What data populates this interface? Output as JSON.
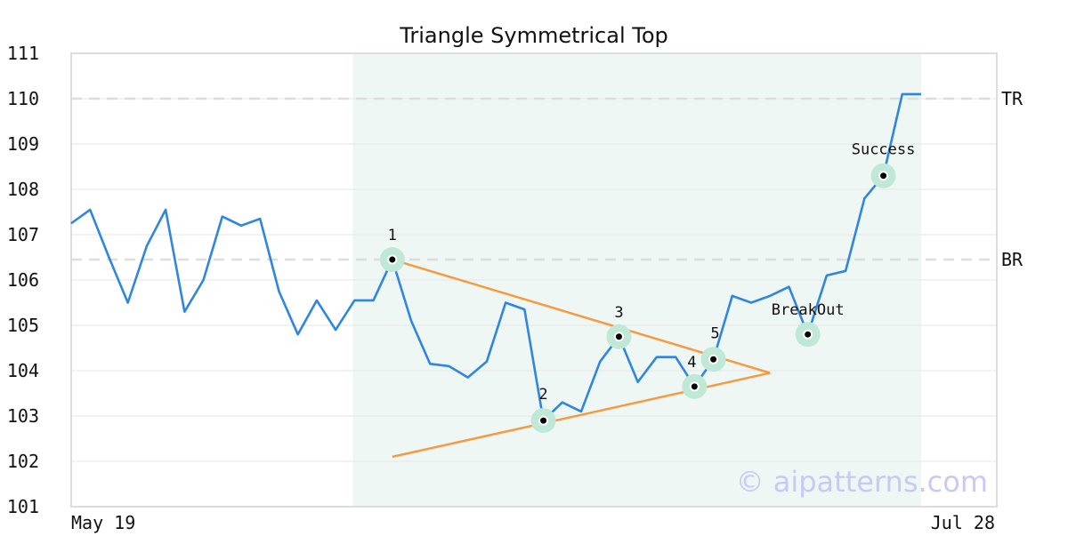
{
  "chart_data": {
    "type": "line",
    "title": "Triangle Symmetrical Top",
    "xlabel": "",
    "ylabel": "",
    "x_tick_labels": [
      "May 19",
      "Jul 28"
    ],
    "ylim": [
      101,
      111
    ],
    "yticks": [
      "101",
      "102",
      "103",
      "104",
      "105",
      "106",
      "107",
      "108",
      "109",
      "110",
      "111"
    ],
    "grid": "horizontal",
    "pattern_region": {
      "start_index": 15,
      "end_index": 45
    },
    "series": [
      {
        "color": "#2f86e0",
        "values": [
          107.25,
          107.55,
          106.5,
          105.5,
          106.75,
          107.55,
          105.3,
          106.0,
          107.4,
          107.2,
          107.35,
          105.75,
          104.8,
          105.55,
          104.9,
          105.55,
          105.55,
          106.45,
          105.1,
          104.15,
          104.1,
          103.85,
          104.2,
          105.5,
          105.35,
          102.9,
          103.3,
          103.1,
          104.2,
          104.75,
          103.75,
          104.3,
          104.3,
          103.65,
          104.25,
          105.65,
          105.5,
          105.65,
          105.85,
          104.8,
          106.1,
          106.2,
          107.8,
          108.3,
          110.1,
          110.1
        ]
      }
    ],
    "trendlines": [
      {
        "name": "upper",
        "color": "#f59a40",
        "from": [
          17,
          106.45
        ],
        "to": [
          37,
          103.95
        ]
      },
      {
        "name": "lower",
        "color": "#f59a40",
        "from": [
          17,
          102.1
        ],
        "to": [
          37,
          103.95
        ]
      }
    ],
    "levels": [
      {
        "label": "TR",
        "value": 110.0
      },
      {
        "label": "BR",
        "value": 106.45
      }
    ],
    "annotations": [
      {
        "label": "1",
        "index": 17,
        "value": 106.45
      },
      {
        "label": "2",
        "index": 25,
        "value": 102.9
      },
      {
        "label": "3",
        "index": 29,
        "value": 104.75
      },
      {
        "label": "4",
        "index": 33,
        "value": 103.65
      },
      {
        "label": "5",
        "index": 34,
        "value": 104.25
      },
      {
        "label": "BreakOut",
        "index": 39,
        "value": 104.8
      },
      {
        "label": "Success",
        "index": 43,
        "value": 108.3
      }
    ],
    "colors": {
      "line": "#2f86e0",
      "trendline": "#f59a40",
      "region": "#eef7f3",
      "marker_halo": "#bfe9d6",
      "level": "#dddddd"
    }
  },
  "watermark": "© aipatterns.com"
}
